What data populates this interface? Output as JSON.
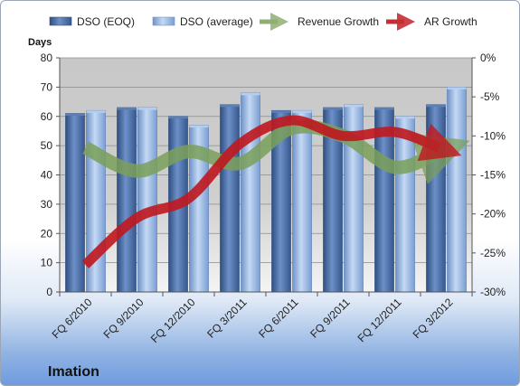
{
  "chart_data": {
    "type": "bar",
    "title": "",
    "company": "Imation",
    "ylabel": "Days",
    "ylim": [
      0,
      80
    ],
    "yticks": [
      "0",
      "10",
      "20",
      "30",
      "40",
      "50",
      "60",
      "70",
      "80"
    ],
    "y2lim": [
      -30,
      0
    ],
    "y2ticks": [
      "0%",
      "-5%",
      "-10%",
      "-15%",
      "-20%",
      "-25%",
      "-30%"
    ],
    "categories": [
      "FQ 6/2010",
      "FQ 9/2010",
      "FQ 12/2010",
      "FQ 3/2011",
      "FQ 6/2011",
      "FQ 9/2011",
      "FQ 12/2011",
      "FQ 3/2012"
    ],
    "series": [
      {
        "name": "DSO (EOQ)",
        "kind": "bar",
        "axis": "left",
        "color": "#4a6fa5",
        "values": [
          61,
          63,
          60,
          64,
          62,
          63,
          63,
          64
        ]
      },
      {
        "name": "DSO (average)",
        "kind": "bar",
        "axis": "left",
        "color": "#9dbce6",
        "values": [
          62,
          63,
          57,
          68,
          62,
          64,
          60,
          70
        ]
      },
      {
        "name": "Revenue Growth",
        "kind": "line",
        "axis": "right",
        "color": "#7ba05b",
        "values": [
          -11.5,
          -14.5,
          -12,
          -13.5,
          -9,
          -10,
          -14,
          -12
        ]
      },
      {
        "name": "AR Growth",
        "kind": "line",
        "axis": "right",
        "color": "#c0181f",
        "values": [
          -26.5,
          -20.5,
          -18,
          -11,
          -8,
          -10,
          -9.5,
          -11.5
        ]
      }
    ],
    "grid": true,
    "legend": "top"
  }
}
